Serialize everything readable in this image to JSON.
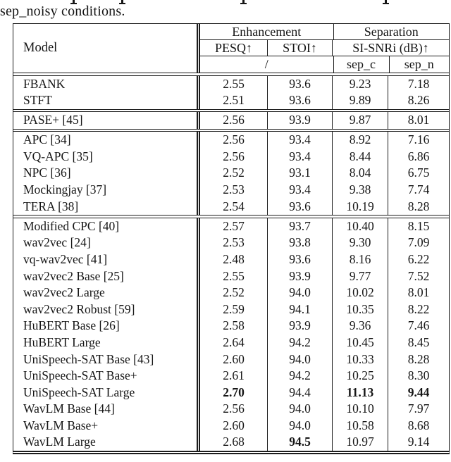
{
  "caption": {
    "line2": "sep_noisy conditions."
  },
  "colors": {
    "text": "#161616",
    "rule": "#1c1c1c",
    "background": "#ffffff"
  },
  "table": {
    "header": {
      "model": "Model",
      "enhancement": "Enhancement",
      "separation": "Separation",
      "pesq": "PESQ↑",
      "stoi": "STOI↑",
      "si_snri": "SI-SNRi (dB)↑",
      "slash": "/",
      "sep_c": "sep_c",
      "sep_n": "sep_n"
    },
    "groups": [
      {
        "rows": [
          {
            "model": "FBANK",
            "pesq": "2.55",
            "stoi": "93.6",
            "sep_c": "9.23",
            "sep_n": "7.18"
          },
          {
            "model": "STFT",
            "pesq": "2.51",
            "stoi": "93.6",
            "sep_c": "9.89",
            "sep_n": "8.26"
          }
        ]
      },
      {
        "rows": [
          {
            "model": "PASE+ [45]",
            "pesq": "2.56",
            "stoi": "93.9",
            "sep_c": "9.87",
            "sep_n": "8.01"
          }
        ]
      },
      {
        "rows": [
          {
            "model": "APC [34]",
            "pesq": "2.56",
            "stoi": "93.4",
            "sep_c": "8.92",
            "sep_n": "7.16"
          },
          {
            "model": "VQ-APC [35]",
            "pesq": "2.56",
            "stoi": "93.4",
            "sep_c": "8.44",
            "sep_n": "6.86"
          },
          {
            "model": "NPC [36]",
            "pesq": "2.52",
            "stoi": "93.1",
            "sep_c": "8.04",
            "sep_n": "6.75"
          },
          {
            "model": "Mockingjay [37]",
            "pesq": "2.53",
            "stoi": "93.4",
            "sep_c": "9.38",
            "sep_n": "7.74"
          },
          {
            "model": "TERA [38]",
            "pesq": "2.54",
            "stoi": "93.6",
            "sep_c": "10.19",
            "sep_n": "8.28"
          }
        ]
      },
      {
        "rows": [
          {
            "model": "Modified CPC [40]",
            "pesq": "2.57",
            "stoi": "93.7",
            "sep_c": "10.40",
            "sep_n": "8.15"
          },
          {
            "model": "wav2vec [24]",
            "pesq": "2.53",
            "stoi": "93.8",
            "sep_c": "9.30",
            "sep_n": "7.09"
          },
          {
            "model": "vq-wav2vec [41]",
            "pesq": "2.48",
            "stoi": "93.6",
            "sep_c": "8.16",
            "sep_n": "6.22"
          },
          {
            "model": "wav2vec2 Base [25]",
            "pesq": "2.55",
            "stoi": "93.9",
            "sep_c": "9.77",
            "sep_n": "7.52"
          },
          {
            "model": "wav2vec2 Large",
            "pesq": "2.52",
            "stoi": "94.0",
            "sep_c": "10.02",
            "sep_n": "8.01"
          },
          {
            "model": "wav2vec2 Robust [59]",
            "pesq": "2.59",
            "stoi": "94.1",
            "sep_c": "10.35",
            "sep_n": "8.22"
          },
          {
            "model": "HuBERT Base [26]",
            "pesq": "2.58",
            "stoi": "93.9",
            "sep_c": "9.36",
            "sep_n": "7.46"
          },
          {
            "model": "HuBERT Large",
            "pesq": "2.64",
            "stoi": "94.2",
            "sep_c": "10.45",
            "sep_n": "8.45"
          },
          {
            "model": "UniSpeech-SAT Base [43]",
            "pesq": "2.60",
            "stoi": "94.0",
            "sep_c": "10.33",
            "sep_n": "8.28"
          },
          {
            "model": "UniSpeech-SAT Base+",
            "pesq": "2.61",
            "stoi": "94.2",
            "sep_c": "10.25",
            "sep_n": "8.30"
          },
          {
            "model": "UniSpeech-SAT Large",
            "pesq": "2.70",
            "stoi": "94.4",
            "sep_c": "11.13",
            "sep_n": "9.44",
            "bold": [
              "pesq",
              "sep_c",
              "sep_n"
            ]
          },
          {
            "model": "WavLM Base [44]",
            "pesq": "2.56",
            "stoi": "94.0",
            "sep_c": "10.10",
            "sep_n": "7.97"
          },
          {
            "model": "WavLM Base+",
            "pesq": "2.60",
            "stoi": "94.0",
            "sep_c": "10.58",
            "sep_n": "8.68"
          },
          {
            "model": "WavLM Large",
            "pesq": "2.68",
            "stoi": "94.5",
            "sep_c": "10.97",
            "sep_n": "9.14",
            "bold": [
              "stoi"
            ]
          }
        ]
      }
    ]
  }
}
